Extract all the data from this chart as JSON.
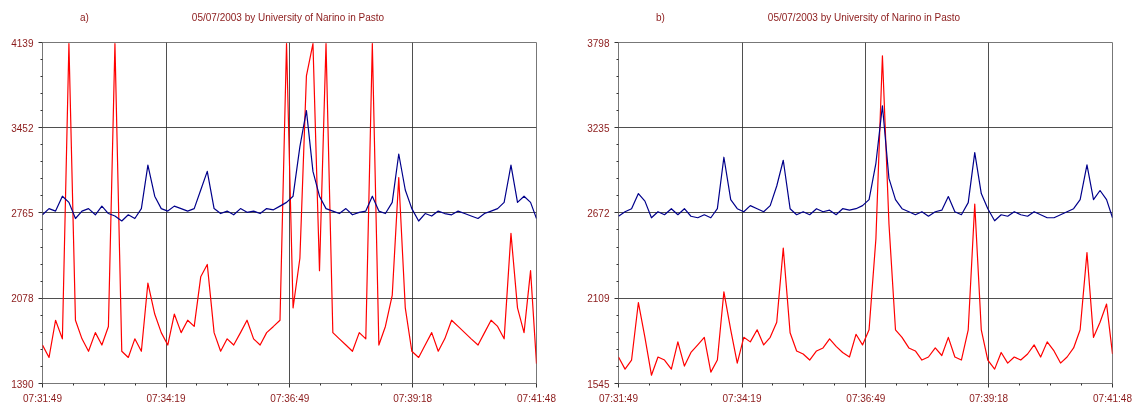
{
  "chart_data": [
    {
      "type": "line",
      "title": "a)",
      "subtitle": "05/07/2003  by  University of Narino  in  Pasto",
      "x": [
        7.5303,
        7.5325,
        7.5347,
        7.537,
        7.5392,
        7.5414,
        7.5436,
        7.5458,
        7.5481,
        7.5503,
        7.5525,
        7.5547,
        7.557,
        7.5592,
        7.5614,
        7.5636,
        7.5658,
        7.5681,
        7.5703,
        7.5725,
        7.5747,
        7.577,
        7.5792,
        7.5814,
        7.5836,
        7.5858,
        7.5881,
        7.5903,
        7.5925,
        7.5947,
        7.597,
        7.5992,
        7.6014,
        7.6036,
        7.6058,
        7.6081,
        7.6103,
        7.6125,
        7.6147,
        7.617,
        7.6192,
        7.6214,
        7.6236,
        7.6258,
        7.6281,
        7.6303,
        7.6325,
        7.6347,
        7.637,
        7.6392,
        7.6414,
        7.6436,
        7.6458,
        7.6481,
        7.6503,
        7.6525,
        7.6547,
        7.657,
        7.6592,
        7.6614,
        7.6636,
        7.6658,
        7.6681,
        7.6703,
        7.6725,
        7.6747,
        7.677,
        7.6792,
        7.6814,
        7.6836,
        7.6858,
        7.6881,
        7.6903,
        7.6925,
        7.6947,
        7.6967
      ],
      "series": [
        {
          "color": "#ff0000",
          "values": [
            1700,
            1600,
            1900,
            1750,
            4130,
            1900,
            1750,
            1650,
            1800,
            1700,
            1850,
            4130,
            1650,
            1600,
            1750,
            1650,
            2200,
            1950,
            1800,
            1700,
            1950,
            1800,
            1900,
            1850,
            2250,
            2350,
            1800,
            1650,
            1750,
            1700,
            1800,
            1900,
            1750,
            1700,
            1800,
            1850,
            1900,
            4130,
            2000,
            2400,
            3870,
            4130,
            2300,
            4130,
            1800,
            1750,
            1700,
            1650,
            1800,
            1750,
            4130,
            1700,
            1850,
            2100,
            3050,
            2000,
            1650,
            1600,
            1700,
            1800,
            1650,
            1750,
            1900,
            1850,
            1800,
            1750,
            1700,
            1800,
            1900,
            1850,
            1750,
            2600,
            2000,
            1800,
            2300,
            1550
          ]
        },
        {
          "color": "#00008b",
          "values": [
            2750,
            2800,
            2780,
            2900,
            2850,
            2720,
            2780,
            2800,
            2750,
            2820,
            2760,
            2740,
            2700,
            2750,
            2720,
            2800,
            3150,
            2900,
            2800,
            2780,
            2820,
            2800,
            2780,
            2800,
            2950,
            3100,
            2800,
            2760,
            2780,
            2750,
            2800,
            2770,
            2780,
            2760,
            2800,
            2790,
            2820,
            2850,
            2900,
            3300,
            3590,
            3100,
            2900,
            2800,
            2780,
            2760,
            2800,
            2750,
            2770,
            2780,
            2900,
            2780,
            2760,
            2850,
            3240,
            2950,
            2800,
            2700,
            2760,
            2740,
            2780,
            2760,
            2750,
            2780,
            2760,
            2740,
            2720,
            2760,
            2780,
            2800,
            2850,
            3150,
            2850,
            2900,
            2850,
            2720
          ]
        }
      ],
      "xlim": [
        7.5303,
        7.6967
      ],
      "xticks": [
        {
          "value": 7.5303,
          "label": "07:31:49"
        },
        {
          "value": 7.5719,
          "label": "07:34:19"
        },
        {
          "value": 7.6136,
          "label": "07:36:49"
        },
        {
          "value": 7.655,
          "label": "07:39:18"
        },
        {
          "value": 7.6967,
          "label": "07:41:48"
        }
      ],
      "ylim": [
        1390,
        4139
      ],
      "yticks": [
        1390,
        2078,
        2765,
        3452,
        4139
      ],
      "grid": true
    },
    {
      "type": "line",
      "title": "b)",
      "subtitle": "05/07/2003  by  University of Narino  in  Pasto",
      "x": [
        7.5303,
        7.5325,
        7.5347,
        7.537,
        7.5392,
        7.5414,
        7.5436,
        7.5458,
        7.5481,
        7.5503,
        7.5525,
        7.5547,
        7.557,
        7.5592,
        7.5614,
        7.5636,
        7.5658,
        7.5681,
        7.5703,
        7.5725,
        7.5747,
        7.577,
        7.5792,
        7.5814,
        7.5836,
        7.5858,
        7.5881,
        7.5903,
        7.5925,
        7.5947,
        7.597,
        7.5992,
        7.6014,
        7.6036,
        7.6058,
        7.6081,
        7.6103,
        7.6125,
        7.6147,
        7.617,
        7.6192,
        7.6214,
        7.6236,
        7.6258,
        7.6281,
        7.6303,
        7.6325,
        7.6347,
        7.637,
        7.6392,
        7.6414,
        7.6436,
        7.6458,
        7.6481,
        7.6503,
        7.6525,
        7.6547,
        7.657,
        7.6592,
        7.6614,
        7.6636,
        7.6658,
        7.6681,
        7.6703,
        7.6725,
        7.6747,
        7.677,
        7.6792,
        7.6814,
        7.6836,
        7.6858,
        7.6881,
        7.6903,
        7.6925,
        7.6947,
        7.6967
      ],
      "series": [
        {
          "color": "#ff0000",
          "values": [
            1720,
            1640,
            1700,
            2080,
            1850,
            1600,
            1720,
            1700,
            1640,
            1820,
            1660,
            1750,
            1800,
            1850,
            1620,
            1700,
            2150,
            1900,
            1680,
            1850,
            1820,
            1900,
            1800,
            1850,
            1950,
            2440,
            1880,
            1760,
            1740,
            1700,
            1760,
            1780,
            1840,
            1790,
            1750,
            1720,
            1870,
            1800,
            1900,
            2500,
            3710,
            2600,
            1900,
            1850,
            1780,
            1760,
            1700,
            1720,
            1780,
            1730,
            1850,
            1720,
            1700,
            1900,
            2730,
            1900,
            1700,
            1640,
            1750,
            1680,
            1720,
            1700,
            1740,
            1800,
            1720,
            1820,
            1760,
            1680,
            1720,
            1780,
            1900,
            2410,
            1850,
            1950,
            2070,
            1740
          ]
        },
        {
          "color": "#00008b",
          "values": [
            2650,
            2680,
            2700,
            2800,
            2750,
            2640,
            2680,
            2660,
            2700,
            2660,
            2700,
            2650,
            2640,
            2660,
            2640,
            2700,
            3040,
            2760,
            2700,
            2680,
            2720,
            2700,
            2680,
            2720,
            2850,
            3020,
            2700,
            2660,
            2680,
            2660,
            2700,
            2680,
            2690,
            2660,
            2700,
            2690,
            2700,
            2720,
            2760,
            3000,
            3380,
            2900,
            2760,
            2700,
            2680,
            2660,
            2680,
            2650,
            2680,
            2690,
            2780,
            2680,
            2660,
            2740,
            3070,
            2800,
            2700,
            2620,
            2660,
            2650,
            2680,
            2660,
            2650,
            2680,
            2660,
            2640,
            2640,
            2660,
            2680,
            2700,
            2760,
            2990,
            2760,
            2820,
            2760,
            2640
          ]
        }
      ],
      "xlim": [
        7.5303,
        7.6967
      ],
      "xticks": [
        {
          "value": 7.5303,
          "label": "07:31:49"
        },
        {
          "value": 7.5719,
          "label": "07:34:19"
        },
        {
          "value": 7.6136,
          "label": "07:36:49"
        },
        {
          "value": 7.655,
          "label": "07:39:18"
        },
        {
          "value": 7.6967,
          "label": "07:41:48"
        }
      ],
      "ylim": [
        1545,
        3798
      ],
      "yticks": [
        1545,
        2109,
        2672,
        3235,
        3798
      ],
      "grid": true
    }
  ]
}
